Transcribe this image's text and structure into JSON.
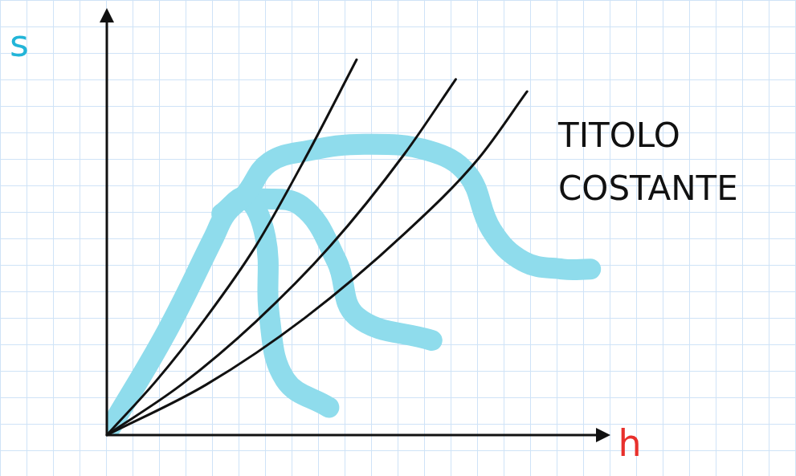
{
  "chart_data": {
    "type": "line",
    "x_label": "h",
    "y_label": "s",
    "annotation": "TITOLO COSTANTE",
    "xlim": [
      0,
      100
    ],
    "ylim": [
      0,
      100
    ],
    "tick_labels": false,
    "series": [
      {
        "color": "#111111",
        "x": [
          0,
          10,
          20,
          30,
          40,
          50.4
        ],
        "values": [
          0,
          13,
          28,
          45,
          66,
          89.6
        ]
      },
      {
        "color": "#111111",
        "x": [
          0,
          15,
          30,
          45,
          60,
          70.4
        ],
        "values": [
          0,
          12,
          27,
          45,
          67,
          84.9
        ]
      },
      {
        "color": "#111111",
        "x": [
          0,
          20,
          40,
          60,
          75,
          84.8
        ],
        "values": [
          0,
          12,
          28,
          48,
          66,
          82
        ]
      },
      {
        "color": "#8fdcec",
        "line_style": "thick",
        "x": [
          0.8,
          12,
          21.6,
          24,
          28,
          32.8,
          40.8,
          52,
          64.8,
          72.8,
          77.6,
          84,
          92,
          97.6
        ],
        "values": [
          1.9,
          24.5,
          47.2,
          52.8,
          57.5,
          65.1,
          67.9,
          69.4,
          67.9,
          62.3,
          49,
          41.5,
          39.6,
          39.6
        ]
      },
      {
        "color": "#8fdcec",
        "line_style": "thick",
        "x": [
          23.2,
          28,
          32,
          32.8,
          36,
          44.8
        ],
        "values": [
          52.8,
          56.6,
          47.2,
          28.3,
          13.2,
          6.6
        ]
      },
      {
        "color": "#8fdcec",
        "line_style": "thick",
        "x": [
          29.6,
          39.2,
          46.4,
          50.4,
          65.6
        ],
        "values": [
          56.6,
          54.7,
          41.5,
          28.3,
          22.6
        ]
      }
    ]
  }
}
